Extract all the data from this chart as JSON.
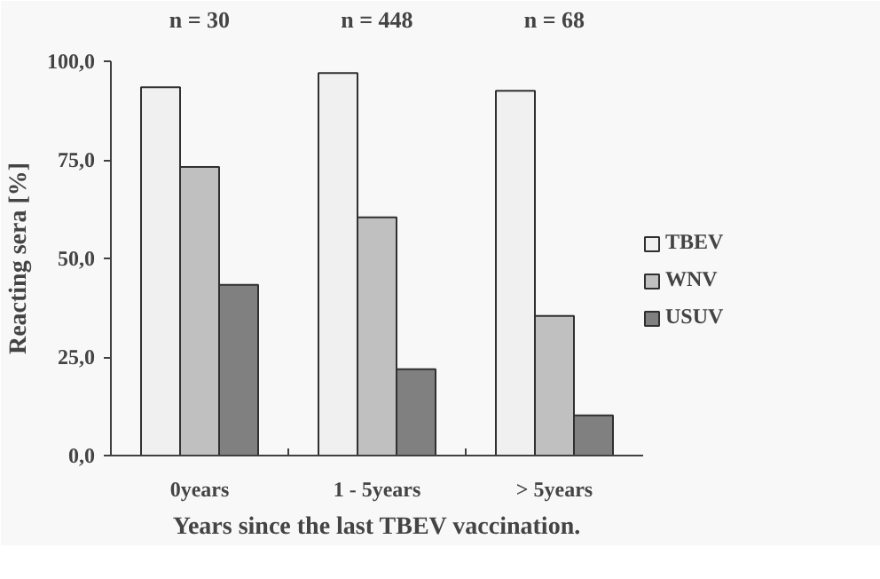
{
  "chart_data": {
    "type": "bar",
    "xlabel": "Years since the last TBEV vaccination.",
    "ylabel": "Reacting sera [%]",
    "categories": [
      "0years",
      "1 - 5years",
      "> 5years"
    ],
    "series": [
      {
        "name": "TBEV",
        "color": "#f0f0f0",
        "values": [
          93.4,
          97.0,
          92.5
        ]
      },
      {
        "name": "WNV",
        "color": "#c0c0c0",
        "values": [
          73.2,
          60.4,
          35.4
        ]
      },
      {
        "name": "USUV",
        "color": "#808080",
        "values": [
          43.3,
          21.9,
          10.2
        ]
      }
    ],
    "ylim": [
      0,
      100
    ],
    "yticks": [
      {
        "value": 0,
        "label": "0,0"
      },
      {
        "value": 25,
        "label": "25,0"
      },
      {
        "value": 50,
        "label": "50,0"
      },
      {
        "value": 75,
        "label": "75,0"
      },
      {
        "value": 100,
        "label": "100,0"
      }
    ],
    "annotations": [
      "n = 30",
      "n = 448",
      "n = 68"
    ],
    "grid": false,
    "legend": "right"
  }
}
